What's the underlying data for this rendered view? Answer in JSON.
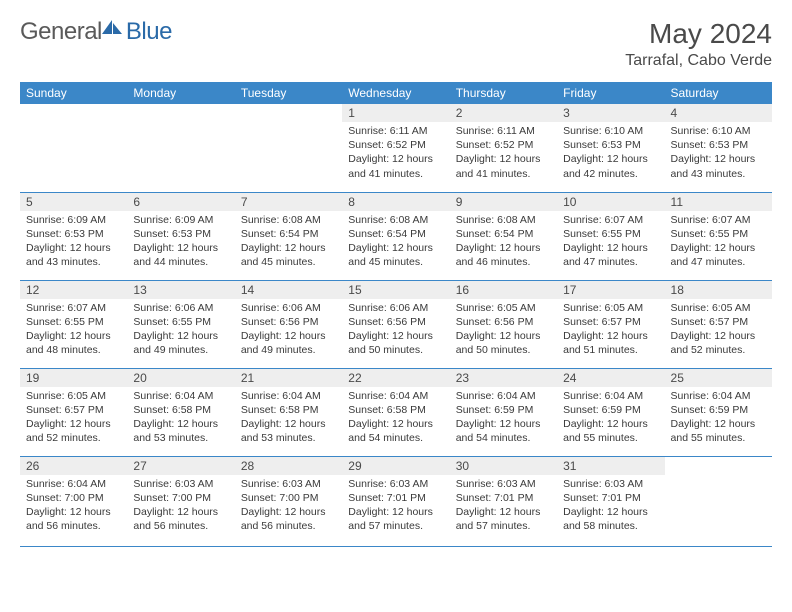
{
  "brand": {
    "general": "General",
    "blue": "Blue"
  },
  "title": "May 2024",
  "location": "Tarrafal, Cabo Verde",
  "colors": {
    "header_band": "#3b87c8",
    "daynum_bg": "#eeeeee",
    "rule": "#3b87c8",
    "text_dark": "#4a4a4a",
    "brand_gray": "#5a5a5a",
    "brand_blue": "#2a6aa8",
    "background": "#ffffff"
  },
  "fonts": {
    "title_size_pt": 21,
    "location_size_pt": 12,
    "dayheader_size_pt": 9,
    "daynum_size_pt": 9,
    "body_size_pt": 8
  },
  "day_headers": [
    "Sunday",
    "Monday",
    "Tuesday",
    "Wednesday",
    "Thursday",
    "Friday",
    "Saturday"
  ],
  "weeks": [
    [
      null,
      null,
      null,
      {
        "n": "1",
        "sunrise": "6:11 AM",
        "sunset": "6:52 PM",
        "daylight": "12 hours and 41 minutes."
      },
      {
        "n": "2",
        "sunrise": "6:11 AM",
        "sunset": "6:52 PM",
        "daylight": "12 hours and 41 minutes."
      },
      {
        "n": "3",
        "sunrise": "6:10 AM",
        "sunset": "6:53 PM",
        "daylight": "12 hours and 42 minutes."
      },
      {
        "n": "4",
        "sunrise": "6:10 AM",
        "sunset": "6:53 PM",
        "daylight": "12 hours and 43 minutes."
      }
    ],
    [
      {
        "n": "5",
        "sunrise": "6:09 AM",
        "sunset": "6:53 PM",
        "daylight": "12 hours and 43 minutes."
      },
      {
        "n": "6",
        "sunrise": "6:09 AM",
        "sunset": "6:53 PM",
        "daylight": "12 hours and 44 minutes."
      },
      {
        "n": "7",
        "sunrise": "6:08 AM",
        "sunset": "6:54 PM",
        "daylight": "12 hours and 45 minutes."
      },
      {
        "n": "8",
        "sunrise": "6:08 AM",
        "sunset": "6:54 PM",
        "daylight": "12 hours and 45 minutes."
      },
      {
        "n": "9",
        "sunrise": "6:08 AM",
        "sunset": "6:54 PM",
        "daylight": "12 hours and 46 minutes."
      },
      {
        "n": "10",
        "sunrise": "6:07 AM",
        "sunset": "6:55 PM",
        "daylight": "12 hours and 47 minutes."
      },
      {
        "n": "11",
        "sunrise": "6:07 AM",
        "sunset": "6:55 PM",
        "daylight": "12 hours and 47 minutes."
      }
    ],
    [
      {
        "n": "12",
        "sunrise": "6:07 AM",
        "sunset": "6:55 PM",
        "daylight": "12 hours and 48 minutes."
      },
      {
        "n": "13",
        "sunrise": "6:06 AM",
        "sunset": "6:55 PM",
        "daylight": "12 hours and 49 minutes."
      },
      {
        "n": "14",
        "sunrise": "6:06 AM",
        "sunset": "6:56 PM",
        "daylight": "12 hours and 49 minutes."
      },
      {
        "n": "15",
        "sunrise": "6:06 AM",
        "sunset": "6:56 PM",
        "daylight": "12 hours and 50 minutes."
      },
      {
        "n": "16",
        "sunrise": "6:05 AM",
        "sunset": "6:56 PM",
        "daylight": "12 hours and 50 minutes."
      },
      {
        "n": "17",
        "sunrise": "6:05 AM",
        "sunset": "6:57 PM",
        "daylight": "12 hours and 51 minutes."
      },
      {
        "n": "18",
        "sunrise": "6:05 AM",
        "sunset": "6:57 PM",
        "daylight": "12 hours and 52 minutes."
      }
    ],
    [
      {
        "n": "19",
        "sunrise": "6:05 AM",
        "sunset": "6:57 PM",
        "daylight": "12 hours and 52 minutes."
      },
      {
        "n": "20",
        "sunrise": "6:04 AM",
        "sunset": "6:58 PM",
        "daylight": "12 hours and 53 minutes."
      },
      {
        "n": "21",
        "sunrise": "6:04 AM",
        "sunset": "6:58 PM",
        "daylight": "12 hours and 53 minutes."
      },
      {
        "n": "22",
        "sunrise": "6:04 AM",
        "sunset": "6:58 PM",
        "daylight": "12 hours and 54 minutes."
      },
      {
        "n": "23",
        "sunrise": "6:04 AM",
        "sunset": "6:59 PM",
        "daylight": "12 hours and 54 minutes."
      },
      {
        "n": "24",
        "sunrise": "6:04 AM",
        "sunset": "6:59 PM",
        "daylight": "12 hours and 55 minutes."
      },
      {
        "n": "25",
        "sunrise": "6:04 AM",
        "sunset": "6:59 PM",
        "daylight": "12 hours and 55 minutes."
      }
    ],
    [
      {
        "n": "26",
        "sunrise": "6:04 AM",
        "sunset": "7:00 PM",
        "daylight": "12 hours and 56 minutes."
      },
      {
        "n": "27",
        "sunrise": "6:03 AM",
        "sunset": "7:00 PM",
        "daylight": "12 hours and 56 minutes."
      },
      {
        "n": "28",
        "sunrise": "6:03 AM",
        "sunset": "7:00 PM",
        "daylight": "12 hours and 56 minutes."
      },
      {
        "n": "29",
        "sunrise": "6:03 AM",
        "sunset": "7:01 PM",
        "daylight": "12 hours and 57 minutes."
      },
      {
        "n": "30",
        "sunrise": "6:03 AM",
        "sunset": "7:01 PM",
        "daylight": "12 hours and 57 minutes."
      },
      {
        "n": "31",
        "sunrise": "6:03 AM",
        "sunset": "7:01 PM",
        "daylight": "12 hours and 58 minutes."
      },
      null
    ]
  ],
  "labels": {
    "sunrise": "Sunrise:",
    "sunset": "Sunset:",
    "daylight": "Daylight:"
  }
}
